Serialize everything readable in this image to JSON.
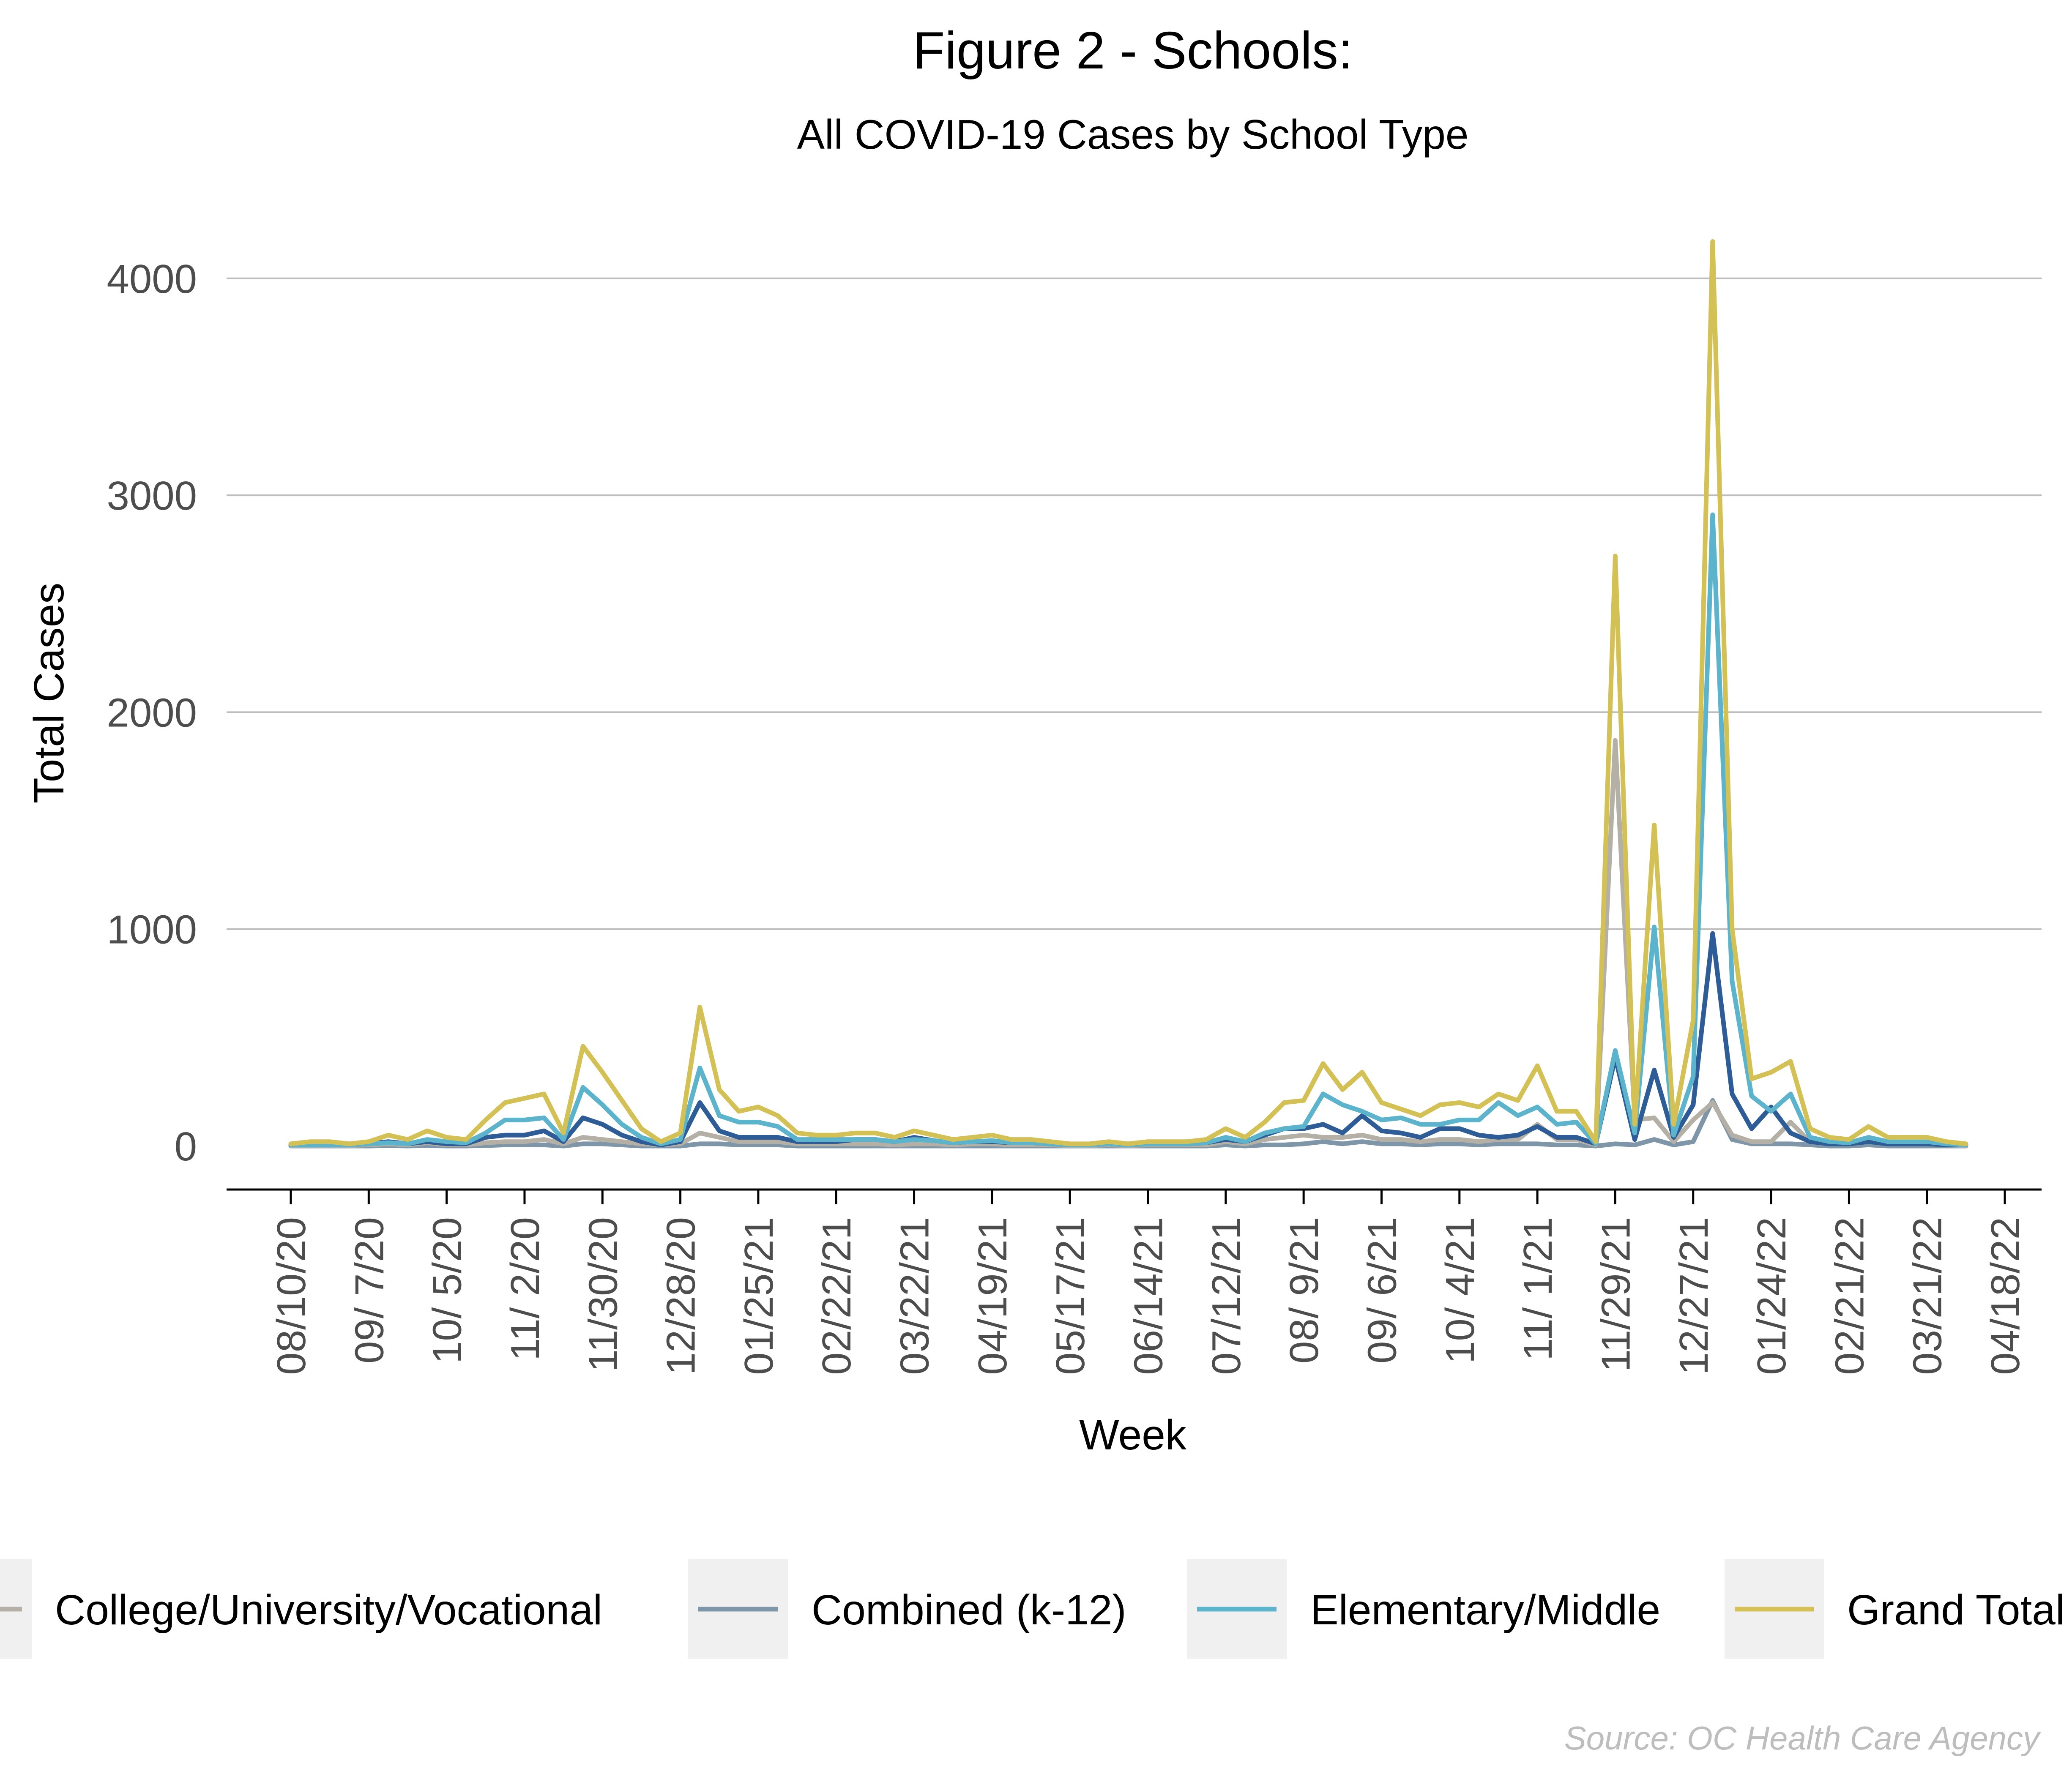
{
  "chart_data": {
    "type": "line",
    "title": "Figure 2 - Schools:",
    "subtitle": "All COVID-19 Cases by School Type",
    "xlabel": "Week",
    "ylabel": "Total Cases",
    "ylim": [
      -200,
      4250
    ],
    "yticks": [
      0,
      1000,
      2000,
      3000,
      4000
    ],
    "grid": "horizontal",
    "legend_position": "bottom",
    "source": "Source: OC Health Care Agency",
    "x_tick_labels": [
      "08/10/20",
      "09/ 7/20",
      "10/ 5/20",
      "11/ 2/20",
      "11/30/20",
      "12/28/20",
      "01/25/21",
      "02/22/21",
      "03/22/21",
      "04/19/21",
      "05/17/21",
      "06/14/21",
      "07/12/21",
      "08/ 9/21",
      "09/ 6/21",
      "10/ 4/21",
      "11/ 1/21",
      "11/29/21",
      "12/27/21",
      "01/24/22",
      "02/21/22",
      "03/21/22",
      "04/18/22"
    ],
    "x_tick_weeks": [
      0,
      4,
      8,
      12,
      16,
      20,
      24,
      28,
      32,
      36,
      40,
      44,
      48,
      52,
      56,
      60,
      64,
      68,
      72,
      76,
      80,
      84,
      88
    ],
    "x_weeks": [
      0,
      1,
      2,
      3,
      4,
      5,
      6,
      7,
      8,
      9,
      10,
      11,
      12,
      13,
      14,
      15,
      16,
      17,
      18,
      19,
      20,
      21,
      22,
      23,
      24,
      25,
      26,
      27,
      28,
      29,
      30,
      31,
      32,
      33,
      34,
      35,
      36,
      37,
      38,
      39,
      40,
      41,
      42,
      43,
      44,
      45,
      46,
      47,
      48,
      49,
      50,
      51,
      52,
      53,
      54,
      55,
      56,
      57,
      58,
      59,
      60,
      61,
      62,
      63,
      64,
      65,
      66,
      67,
      68,
      69,
      70,
      71,
      72,
      73,
      74,
      75,
      76,
      77,
      78,
      79,
      80,
      81,
      82,
      83,
      84,
      85,
      86
    ],
    "series": [
      {
        "name": "Grand Total",
        "color": "#D4C155",
        "values": [
          10,
          20,
          20,
          10,
          20,
          50,
          30,
          70,
          40,
          30,
          120,
          200,
          220,
          240,
          60,
          460,
          340,
          210,
          80,
          20,
          60,
          640,
          260,
          160,
          180,
          140,
          60,
          50,
          50,
          60,
          60,
          40,
          70,
          50,
          30,
          40,
          50,
          30,
          30,
          20,
          10,
          10,
          20,
          10,
          20,
          20,
          20,
          30,
          80,
          40,
          110,
          200,
          210,
          380,
          260,
          340,
          200,
          170,
          140,
          190,
          200,
          180,
          240,
          210,
          370,
          160,
          160,
          20,
          2720,
          100,
          1480,
          100,
          580,
          4170,
          1000,
          310,
          340,
          390,
          80,
          40,
          30,
          90,
          40,
          40,
          40,
          20,
          10
        ]
      },
      {
        "name": "Elementary/Middle",
        "color": "#5BB4CC",
        "values": [
          5,
          5,
          5,
          5,
          10,
          15,
          10,
          30,
          20,
          15,
          60,
          120,
          120,
          130,
          30,
          270,
          190,
          100,
          40,
          10,
          30,
          360,
          140,
          110,
          110,
          90,
          30,
          30,
          30,
          30,
          30,
          20,
          30,
          25,
          15,
          20,
          25,
          15,
          15,
          10,
          5,
          5,
          10,
          5,
          10,
          10,
          10,
          15,
          40,
          20,
          60,
          80,
          90,
          240,
          190,
          160,
          120,
          130,
          100,
          100,
          120,
          120,
          200,
          140,
          180,
          100,
          110,
          10,
          440,
          60,
          1010,
          50,
          320,
          2910,
          760,
          230,
          160,
          240,
          40,
          20,
          15,
          40,
          20,
          20,
          20,
          10,
          5
        ]
      },
      {
        "name": "Combined (k-12)",
        "color": "#2E5C96",
        "values": [
          5,
          5,
          5,
          5,
          10,
          20,
          10,
          20,
          10,
          10,
          40,
          50,
          50,
          70,
          20,
          130,
          100,
          50,
          20,
          5,
          20,
          200,
          70,
          40,
          40,
          40,
          20,
          20,
          20,
          30,
          30,
          20,
          40,
          25,
          15,
          20,
          20,
          15,
          15,
          10,
          5,
          5,
          10,
          5,
          10,
          10,
          10,
          15,
          30,
          20,
          50,
          80,
          80,
          100,
          60,
          140,
          70,
          60,
          40,
          80,
          80,
          50,
          40,
          50,
          90,
          40,
          40,
          10,
          410,
          30,
          350,
          40,
          190,
          980,
          240,
          80,
          180,
          60,
          20,
          10,
          10,
          20,
          10,
          10,
          10,
          5,
          5
        ]
      },
      {
        "name": "College/University/Vocational",
        "color": "#B4B0A6",
        "values": [
          2,
          2,
          2,
          2,
          5,
          10,
          5,
          15,
          5,
          5,
          15,
          20,
          20,
          30,
          10,
          40,
          30,
          20,
          10,
          5,
          10,
          60,
          40,
          20,
          20,
          20,
          10,
          10,
          10,
          10,
          10,
          5,
          10,
          10,
          5,
          10,
          10,
          5,
          5,
          5,
          2,
          2,
          5,
          2,
          5,
          5,
          5,
          5,
          20,
          10,
          30,
          40,
          50,
          40,
          40,
          50,
          30,
          30,
          20,
          30,
          30,
          20,
          30,
          30,
          100,
          30,
          30,
          5,
          1870,
          120,
          130,
          20,
          120,
          200,
          50,
          20,
          20,
          110,
          20,
          10,
          10,
          30,
          10,
          10,
          10,
          5,
          2
        ]
      },
      {
        "name": "Combined (k-12) ",
        "color": "#7F95A8",
        "values": [
          0,
          0,
          0,
          0,
          0,
          2,
          0,
          2,
          0,
          0,
          2,
          5,
          5,
          5,
          0,
          10,
          10,
          5,
          0,
          0,
          0,
          10,
          10,
          5,
          5,
          5,
          0,
          0,
          0,
          0,
          0,
          0,
          0,
          0,
          0,
          0,
          0,
          0,
          0,
          0,
          0,
          0,
          0,
          0,
          0,
          0,
          0,
          0,
          5,
          0,
          5,
          5,
          10,
          20,
          10,
          20,
          10,
          10,
          5,
          10,
          10,
          5,
          10,
          10,
          10,
          5,
          5,
          0,
          10,
          5,
          30,
          5,
          20,
          210,
          30,
          10,
          10,
          10,
          5,
          0,
          0,
          5,
          0,
          0,
          0,
          0,
          0
        ]
      }
    ],
    "legend": [
      {
        "label": "College/University/Vocational",
        "color": "#B4B0A6"
      },
      {
        "label": "Combined (k-12)",
        "color": "#7F95A8"
      },
      {
        "label": "Elementary/Middle",
        "color": "#5BB4CC"
      },
      {
        "label": "Grand Total",
        "color": "#D4C155"
      }
    ]
  }
}
